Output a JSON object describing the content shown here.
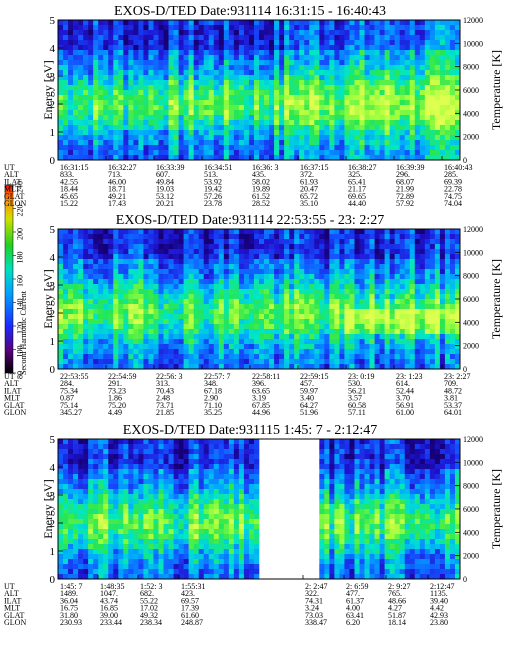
{
  "colorbar": {
    "label": "Second Harmonic Current",
    "ticks": [
      "80",
      "100",
      "120",
      "140",
      "160",
      "180",
      "200",
      "220",
      "240"
    ],
    "min": 80,
    "max": 240
  },
  "chart_data": [
    {
      "type": "heatmap",
      "title": "EXOS-D/TED   Date:931114  16:31:15 - 16:40:43",
      "ylabel": "Energy [eV]",
      "y2label": "Temperature [K]",
      "ylim": [
        0,
        5
      ],
      "y2lim": [
        0,
        12000
      ],
      "yticks": [
        "0",
        "1",
        "2",
        "3",
        "4",
        "5"
      ],
      "y2ticks": [
        "0",
        "2000",
        "4000",
        "6000",
        "8000",
        "10000",
        "12000"
      ],
      "table": {
        "row_labels": [
          "UT",
          "ALT",
          "ILAT",
          "MLT",
          "GLAT",
          "GLON"
        ],
        "columns": [
          [
            "16:31:15",
            "833.",
            "42.55",
            "18.44",
            "45.65",
            "15.22"
          ],
          [
            "16:32:27",
            "713.",
            "46.00",
            "18.71",
            "49.21",
            "17.43"
          ],
          [
            "16:33:39",
            "607.",
            "49.84",
            "19.03",
            "53.12",
            "20.21"
          ],
          [
            "16:34:51",
            "513.",
            "53.92",
            "19.42",
            "57.26",
            "23.78"
          ],
          [
            "16:36: 3",
            "435.",
            "58.02",
            "19.89",
            "61.52",
            "28.52"
          ],
          [
            "16:37:15",
            "372.",
            "61.93",
            "20.47",
            "65.72",
            "35.10"
          ],
          [
            "16:38:27",
            "325.",
            "65.41",
            "21.17",
            "69.65",
            "44.40"
          ],
          [
            "16:39:39",
            "296.",
            "68.07",
            "21.99",
            "72.89",
            "57.92"
          ],
          [
            "16:40:43",
            "285.",
            "69.39",
            "22.78",
            "74.75",
            "74.04"
          ]
        ]
      }
    },
    {
      "type": "heatmap",
      "title": "EXOS-D/TED   Date:931114  22:53:55 - 23: 2:27",
      "ylabel": "Energy [eV]",
      "y2label": "Temperature [K]",
      "ylim": [
        0,
        5
      ],
      "y2lim": [
        0,
        12000
      ],
      "yticks": [
        "0",
        "1",
        "2",
        "3",
        "4",
        "5"
      ],
      "y2ticks": [
        "0",
        "2000",
        "4000",
        "6000",
        "8000",
        "10000",
        "12000"
      ],
      "table": {
        "row_labels": [
          "UT",
          "ALT",
          "ILAT",
          "MLT",
          "GLAT",
          "GLON"
        ],
        "columns": [
          [
            "22:53:55",
            "284.",
            "75.34",
            "0.87",
            "75.14",
            "345.27"
          ],
          [
            "22:54:59",
            "291.",
            "73.23",
            "1.86",
            "75.20",
            "4.49"
          ],
          [
            "22:56: 3",
            "313.",
            "70.43",
            "2.48",
            "73.71",
            "21.85"
          ],
          [
            "22:57: 7",
            "348.",
            "67.18",
            "2.90",
            "71.10",
            "35.25"
          ],
          [
            "22:58:11",
            "396.",
            "63.65",
            "3.19",
            "67.85",
            "44.96"
          ],
          [
            "22:59:15",
            "457.",
            "59.97",
            "3.40",
            "64.27",
            "51.96"
          ],
          [
            "23: 0:19",
            "530.",
            "56.21",
            "3.57",
            "60.58",
            "57.11"
          ],
          [
            "23: 1:23",
            "614.",
            "52.44",
            "3.70",
            "56.91",
            "61.00"
          ],
          [
            "23: 2:27",
            "709.",
            "48.72",
            "3.81",
            "53.37",
            "64.01"
          ]
        ]
      }
    },
    {
      "type": "heatmap",
      "title": "EXOS-D/TED   Date:931115  1:45: 7 - 2:12:47",
      "ylabel": "Energy [eV]",
      "y2label": "Temperature [K]",
      "ylim": [
        0,
        5
      ],
      "y2lim": [
        0,
        12000
      ],
      "yticks": [
        "0",
        "1",
        "2",
        "3",
        "4",
        "5"
      ],
      "y2ticks": [
        "0",
        "2000",
        "4000",
        "6000",
        "8000",
        "10000",
        "12000"
      ],
      "table": {
        "row_labels": [
          "UT",
          "ALT",
          "ILAT",
          "MLT",
          "GLAT",
          "GLON"
        ],
        "columns": [
          [
            "1:45: 7",
            "1489.",
            "36.04",
            "16.75",
            "31.80",
            "230.93"
          ],
          [
            "1:48:35",
            "1047.",
            "43.74",
            "16.85",
            "39.00",
            "233.44"
          ],
          [
            "1:52: 3",
            "682.",
            "55.22",
            "17.02",
            "49.32",
            "238.34"
          ],
          [
            "1:55:31",
            "423.",
            "69.57",
            "17.39",
            "61.60",
            "248.87"
          ],
          [
            "2: 2:47",
            "322.",
            "74.31",
            "3.24",
            "73.03",
            "338.47"
          ],
          [
            "2: 6:59",
            "477.",
            "61.37",
            "4.00",
            "63.41",
            "6.20"
          ],
          [
            "2: 9:27",
            "765.",
            "48.66",
            "4.27",
            "51.87",
            "18.14"
          ],
          [
            "2:12:47",
            "1135.",
            "39.40",
            "4.42",
            "42.93",
            "23.80"
          ]
        ]
      }
    }
  ]
}
